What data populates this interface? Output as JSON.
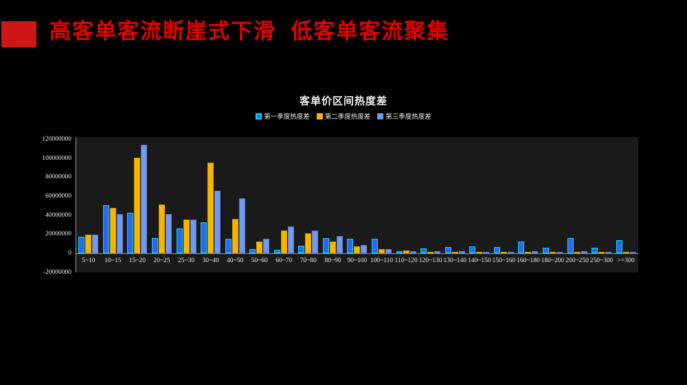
{
  "slide": {
    "title": "高客单客流断崖式下滑  低客单客流聚集",
    "title_color": "#E50000",
    "accent_color": "#CE1616",
    "background": "#000000"
  },
  "chart_data": {
    "type": "bar",
    "title": "客单价区间热度差",
    "categories": [
      "5~10",
      "10~15",
      "15~20",
      "20~25",
      "25~30",
      "30~40",
      "40~50",
      "50~60",
      "60~70",
      "70~80",
      "80~90",
      "90~100",
      "100~110",
      "110~120",
      "120~130",
      "130~140",
      "140~150",
      "150~160",
      "160~180",
      "180~200",
      "200~250",
      "250~300",
      ">=300"
    ],
    "series": [
      {
        "name": "第一季度热度差",
        "fill": "#2E68E8",
        "border": "#00D9FF",
        "values": [
          17500000,
          50500000,
          42500000,
          16000000,
          26000000,
          32500000,
          15500000,
          4000000,
          3500000,
          8000000,
          16000000,
          15000000,
          15000000,
          2000000,
          4800000,
          6300000,
          7500000,
          6500000,
          12000000,
          5800000,
          16000000,
          5600000,
          14000000
        ]
      },
      {
        "name": "第二季度热度差",
        "fill": "#F6B500",
        "border": "#D89F00",
        "values": [
          19500000,
          47500000,
          100500000,
          51500000,
          35500000,
          95500000,
          36000000,
          12000000,
          23500000,
          21000000,
          12000000,
          7500000,
          4000000,
          3000000,
          800000,
          500000,
          300000,
          500000,
          1700000,
          500000,
          1000000,
          300000,
          400000
        ]
      },
      {
        "name": "第三季度热度差",
        "fill": "#7499F0",
        "border": "#5B7CC9",
        "values": [
          19500000,
          41500000,
          114000000,
          41000000,
          35500000,
          66000000,
          58000000,
          15000000,
          28000000,
          23500000,
          18000000,
          9000000,
          4500000,
          2400000,
          1900000,
          2400000,
          1000000,
          1000000,
          2200000,
          1700000,
          2200000,
          800000,
          1500000
        ]
      }
    ],
    "y_ticks": [
      120000000,
      100000000,
      80000000,
      60000000,
      40000000,
      20000000,
      0,
      -20000000
    ],
    "ylim": [
      -20000000,
      122000000
    ],
    "grid": false,
    "legend_position": "top",
    "plot_bg": "#1A1A1A",
    "axis_color": "#9A9A9A"
  }
}
